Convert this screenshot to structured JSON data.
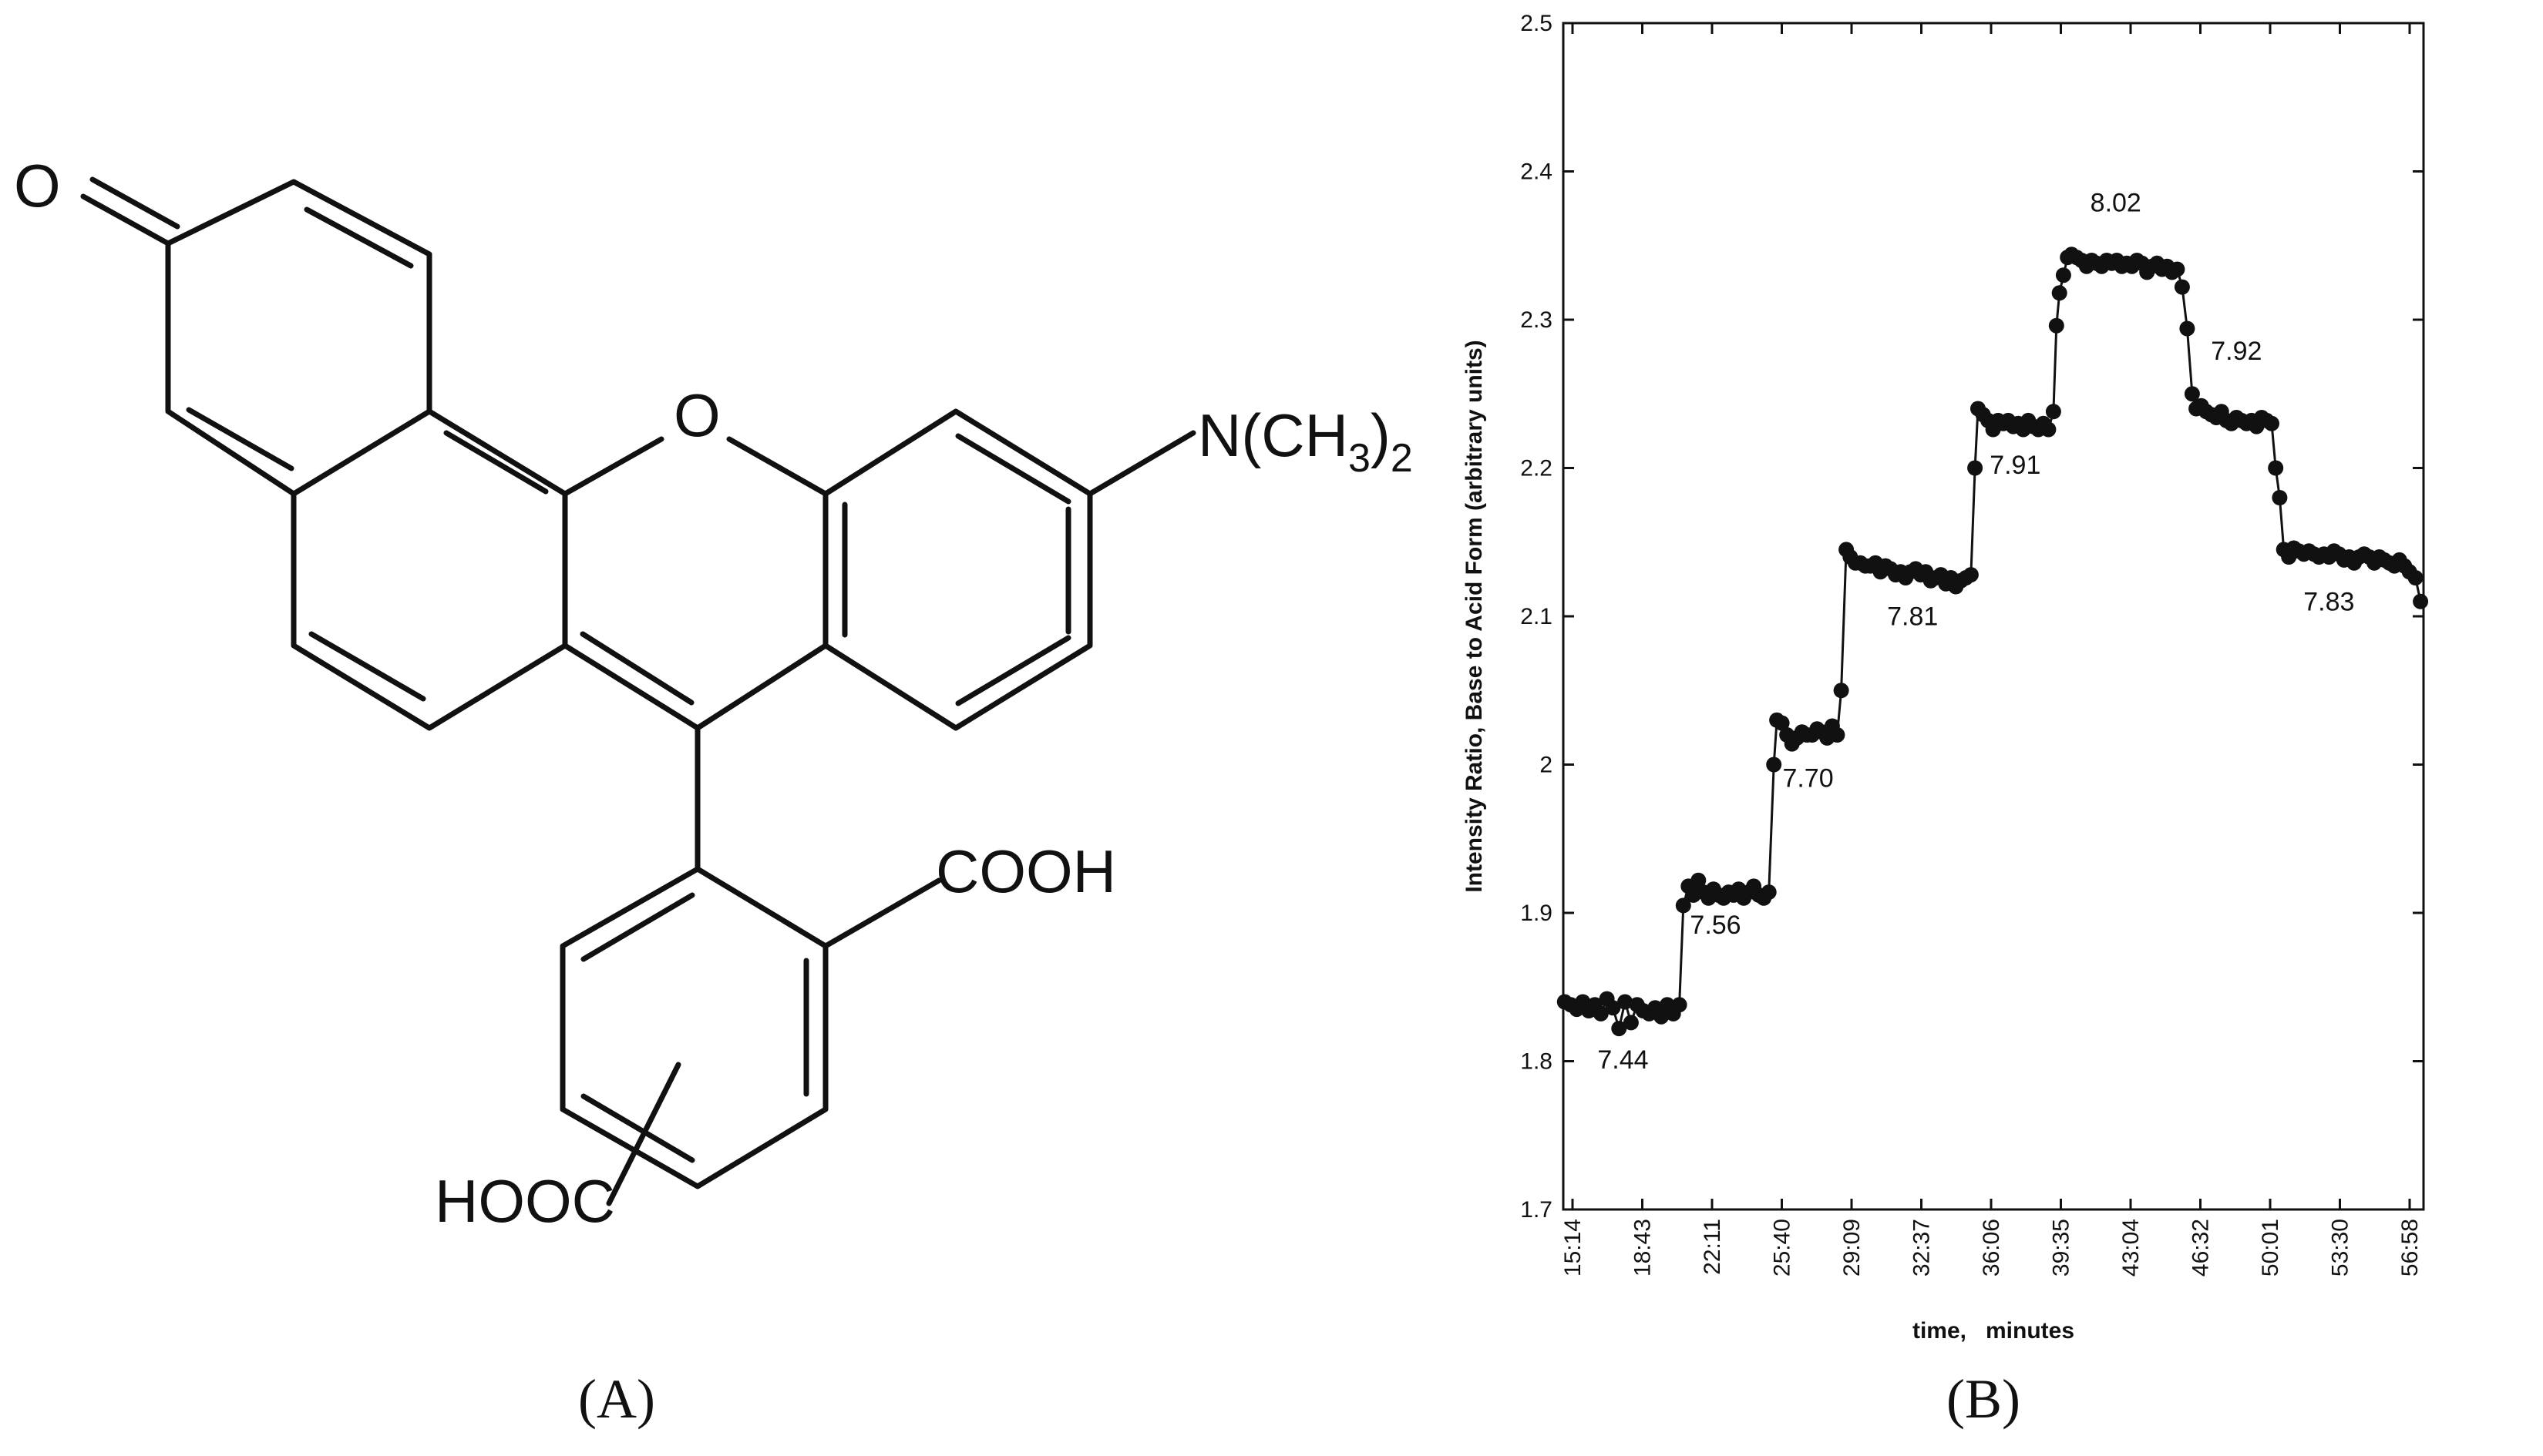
{
  "panel_a": {
    "label": "(A)",
    "atom_O_ketone": "O",
    "atom_O_ring": "O",
    "amine": "N(CH",
    "amine_sub3": "3",
    "amine_close": ")",
    "amine_sub2": "2",
    "cooh_1": "COOH",
    "cooh_2": "HOOC"
  },
  "panel_b": {
    "label": "(B)"
  },
  "chart_data": {
    "type": "line",
    "xlabel": "time,   minutes",
    "ylabel": "Intensity  Ratio,  Base  to  Acid  Form  (arbitrary  units)",
    "x_ticks": [
      "15:14",
      "18:43",
      "22:11",
      "25:40",
      "29:09",
      "32:37",
      "36:06",
      "39:35",
      "43:04",
      "46:32",
      "50:01",
      "53:30",
      "56:58"
    ],
    "xlim": [
      15.23,
      58.0
    ],
    "ylim": [
      1.7,
      2.5
    ],
    "y_ticks": [
      {
        "value": 1.7,
        "label": "1.7"
      },
      {
        "value": 1.8,
        "label": "1.8"
      },
      {
        "value": 1.9,
        "label": "1.9"
      },
      {
        "value": 2.0,
        "label": "2"
      },
      {
        "value": 2.1,
        "label": "2.1"
      },
      {
        "value": 2.2,
        "label": "2.2"
      },
      {
        "value": 2.3,
        "label": "2.3"
      },
      {
        "value": 2.4,
        "label": "2.4"
      },
      {
        "value": 2.5,
        "label": "2.5"
      }
    ],
    "grid": false,
    "series": [
      {
        "marker": "filled-circle",
        "line": true,
        "x": [
          15.3,
          15.6,
          15.9,
          16.2,
          16.5,
          16.8,
          17.1,
          17.4,
          17.7,
          18.0,
          18.3,
          18.6,
          18.9,
          19.2,
          19.5,
          19.8,
          20.1,
          20.4,
          20.7,
          21.0,
          21.2,
          21.45,
          21.7,
          21.95,
          22.2,
          22.45,
          22.7,
          22.95,
          23.2,
          23.45,
          23.7,
          23.95,
          24.2,
          24.45,
          24.7,
          24.95,
          25.2,
          25.45,
          25.7,
          25.85,
          26.1,
          26.35,
          26.6,
          26.85,
          27.1,
          27.35,
          27.6,
          27.85,
          28.1,
          28.35,
          28.6,
          28.85,
          29.05,
          29.3,
          29.5,
          29.75,
          30.0,
          30.25,
          30.5,
          30.75,
          31.0,
          31.25,
          31.5,
          31.75,
          32.0,
          32.25,
          32.5,
          32.75,
          33.0,
          33.25,
          33.5,
          33.75,
          34.0,
          34.25,
          34.5,
          34.75,
          35.0,
          35.25,
          35.5,
          35.7,
          35.85,
          36.1,
          36.35,
          36.6,
          36.85,
          37.1,
          37.35,
          37.6,
          37.85,
          38.1,
          38.35,
          38.6,
          38.85,
          39.1,
          39.35,
          39.6,
          39.75,
          39.9,
          40.1,
          40.3,
          40.5,
          40.75,
          41.0,
          41.25,
          41.5,
          41.75,
          42.0,
          42.25,
          42.5,
          42.75,
          43.0,
          43.25,
          43.5,
          43.75,
          44.0,
          44.25,
          44.5,
          44.75,
          45.0,
          45.25,
          45.5,
          45.75,
          46.0,
          46.25,
          46.5,
          46.7,
          46.95,
          47.2,
          47.45,
          47.7,
          47.95,
          48.2,
          48.45,
          48.7,
          48.95,
          49.2,
          49.45,
          49.7,
          49.95,
          50.2,
          50.45,
          50.65,
          50.85,
          51.05,
          51.3,
          51.55,
          51.8,
          52.05,
          52.3,
          52.55,
          52.8,
          53.05,
          53.3,
          53.55,
          53.8,
          54.05,
          54.3,
          54.55,
          54.8,
          55.05,
          55.3,
          55.55,
          55.8,
          56.05,
          56.3,
          56.55,
          56.8,
          57.05,
          57.3,
          57.6,
          57.85
        ],
        "y": [
          1.84,
          1.838,
          1.835,
          1.84,
          1.834,
          1.838,
          1.832,
          1.842,
          1.836,
          1.822,
          1.84,
          1.826,
          1.838,
          1.834,
          1.832,
          1.836,
          1.83,
          1.838,
          1.832,
          1.838,
          1.905,
          1.918,
          1.912,
          1.922,
          1.914,
          1.91,
          1.916,
          1.912,
          1.91,
          1.914,
          1.912,
          1.916,
          1.91,
          1.914,
          1.918,
          1.912,
          1.91,
          1.914,
          2.0,
          2.03,
          2.028,
          2.02,
          2.014,
          2.018,
          2.022,
          2.02,
          2.02,
          2.024,
          2.022,
          2.018,
          2.026,
          2.02,
          2.05,
          2.145,
          2.14,
          2.136,
          2.136,
          2.134,
          2.134,
          2.136,
          2.13,
          2.134,
          2.132,
          2.128,
          2.13,
          2.126,
          2.13,
          2.132,
          2.128,
          2.13,
          2.124,
          2.126,
          2.128,
          2.122,
          2.126,
          2.12,
          2.124,
          2.126,
          2.128,
          2.2,
          2.24,
          2.236,
          2.232,
          2.226,
          2.232,
          2.23,
          2.232,
          2.228,
          2.23,
          2.226,
          2.232,
          2.228,
          2.226,
          2.23,
          2.226,
          2.238,
          2.296,
          2.318,
          2.33,
          2.342,
          2.344,
          2.342,
          2.34,
          2.336,
          2.34,
          2.338,
          2.336,
          2.34,
          2.338,
          2.34,
          2.336,
          2.338,
          2.336,
          2.34,
          2.338,
          2.332,
          2.336,
          2.338,
          2.334,
          2.336,
          2.332,
          2.334,
          2.322,
          2.294,
          2.25,
          2.24,
          2.242,
          2.238,
          2.236,
          2.234,
          2.238,
          2.232,
          2.23,
          2.234,
          2.232,
          2.23,
          2.232,
          2.228,
          2.234,
          2.232,
          2.23,
          2.2,
          2.18,
          2.145,
          2.14,
          2.146,
          2.144,
          2.142,
          2.144,
          2.142,
          2.14,
          2.142,
          2.14,
          2.144,
          2.142,
          2.138,
          2.14,
          2.136,
          2.14,
          2.142,
          2.14,
          2.136,
          2.14,
          2.138,
          2.136,
          2.134,
          2.138,
          2.134,
          2.13,
          2.126,
          2.11
        ]
      }
    ],
    "annotations": [
      {
        "text": "7.44",
        "x": 18.2,
        "y": 1.795
      },
      {
        "text": "7.56",
        "x": 22.8,
        "y": 1.886
      },
      {
        "text": "7.70",
        "x": 27.4,
        "y": 1.985
      },
      {
        "text": "7.81",
        "x": 32.6,
        "y": 2.094
      },
      {
        "text": "7.91",
        "x": 37.7,
        "y": 2.196
      },
      {
        "text": "8.02",
        "x": 42.7,
        "y": 2.373
      },
      {
        "text": "7.92",
        "x": 48.7,
        "y": 2.273
      },
      {
        "text": "7.83",
        "x": 53.3,
        "y": 2.104
      }
    ]
  }
}
